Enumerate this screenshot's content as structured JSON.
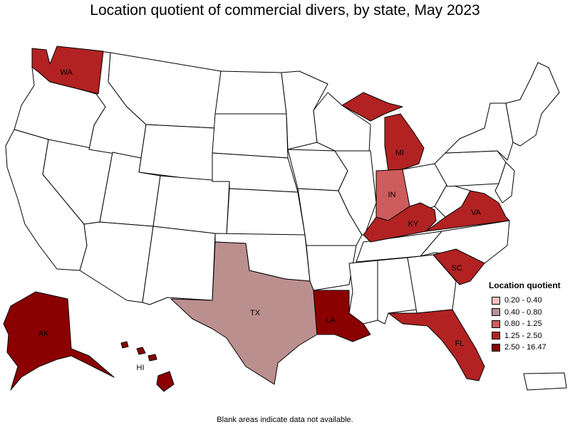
{
  "title": "Location quotient of commercial divers, by state, May 2023",
  "footnote": "Blank areas indicate data not available.",
  "legend": {
    "title": "Location quotient",
    "items": [
      {
        "label": "0.20 - 0.40",
        "color": "#f7c0c0"
      },
      {
        "label": "0.40 - 0.80",
        "color": "#bc8f8f"
      },
      {
        "label": "0.80 - 1.25",
        "color": "#cd5c5c"
      },
      {
        "label": "1.25 - 2.50",
        "color": "#b22222"
      },
      {
        "label": "2.50 - 16.47",
        "color": "#8b0000"
      }
    ]
  },
  "states": {
    "WA": {
      "abbr": "WA",
      "class": "1.25 - 2.50"
    },
    "MI": {
      "abbr": "MI",
      "class": "1.25 - 2.50"
    },
    "IN": {
      "abbr": "IN",
      "class": "0.80 - 1.25"
    },
    "KY": {
      "abbr": "KY",
      "class": "1.25 - 2.50"
    },
    "VA": {
      "abbr": "VA",
      "class": "1.25 - 2.50"
    },
    "SC": {
      "abbr": "SC",
      "class": "1.25 - 2.50"
    },
    "FL": {
      "abbr": "FL",
      "class": "1.25 - 2.50"
    },
    "TX": {
      "abbr": "TX",
      "class": "0.40 - 0.80"
    },
    "LA": {
      "abbr": "LA",
      "class": "2.50 - 16.47"
    },
    "AK": {
      "abbr": "AK",
      "class": "2.50 - 16.47"
    },
    "HI": {
      "abbr": "HI",
      "class": "2.50 - 16.47"
    }
  }
}
